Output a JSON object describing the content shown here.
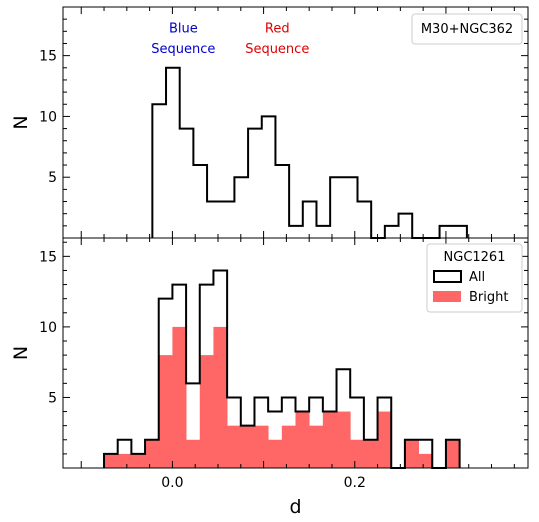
{
  "chart_data": [
    {
      "type": "histogram",
      "panel": "top",
      "xlim": [
        -0.12,
        0.39
      ],
      "ylim": [
        0,
        19
      ],
      "ylabel": "N",
      "xlabel": "",
      "yticks": [
        5,
        10,
        15
      ],
      "ytick_labels": [
        "5",
        "10",
        "15"
      ],
      "bin_width": 0.015,
      "bin_start": -0.022,
      "series": [
        {
          "name": "",
          "style": "step",
          "color": "#000000",
          "values": [
            11,
            14,
            9,
            6,
            3,
            3,
            5,
            9,
            10,
            6,
            1,
            3,
            1,
            5,
            5,
            3,
            0,
            1,
            2,
            0,
            0,
            1,
            1
          ]
        }
      ],
      "legend_title": "M30+NGC362",
      "legend_placement": "top-right",
      "annotations": [
        {
          "text": "Blue",
          "color": "#0000cc",
          "x": 0.012,
          "y": 16.9
        },
        {
          "text": "Sequence",
          "color": "#0000cc",
          "x": 0.012,
          "y": 15.2
        },
        {
          "text": "Red",
          "color": "#e00000",
          "x": 0.115,
          "y": 16.9
        },
        {
          "text": "Sequence",
          "color": "#e00000",
          "x": 0.115,
          "y": 15.2
        }
      ]
    },
    {
      "type": "histogram",
      "panel": "bottom",
      "xlim": [
        -0.12,
        0.39
      ],
      "ylim": [
        0,
        16.3
      ],
      "ylabel": "N",
      "xlabel": "d",
      "xticks": [
        0.0,
        0.2
      ],
      "xtick_labels": [
        "0.0",
        "0.2"
      ],
      "yticks": [
        5,
        10,
        15
      ],
      "ytick_labels": [
        "5",
        "10",
        "15"
      ],
      "bin_width": 0.015,
      "bin_start": -0.075,
      "legend_title": "NGC1261",
      "legend_placement": "top-right",
      "series": [
        {
          "name": "All",
          "style": "step",
          "color": "#000000",
          "values": [
            1,
            2,
            1,
            2,
            12,
            13,
            6,
            13,
            14,
            5,
            3,
            5,
            4,
            5,
            4,
            5,
            4,
            7,
            5,
            2,
            5,
            0,
            2,
            2,
            0,
            2
          ]
        },
        {
          "name": "Bright",
          "style": "filled",
          "color": "#ff6666",
          "values": [
            1,
            1,
            1,
            2,
            8,
            10,
            2,
            8,
            10,
            3,
            3,
            3,
            2,
            3,
            4,
            3,
            4,
            4,
            2,
            2,
            4,
            0,
            2,
            1,
            0,
            2
          ]
        }
      ]
    }
  ]
}
